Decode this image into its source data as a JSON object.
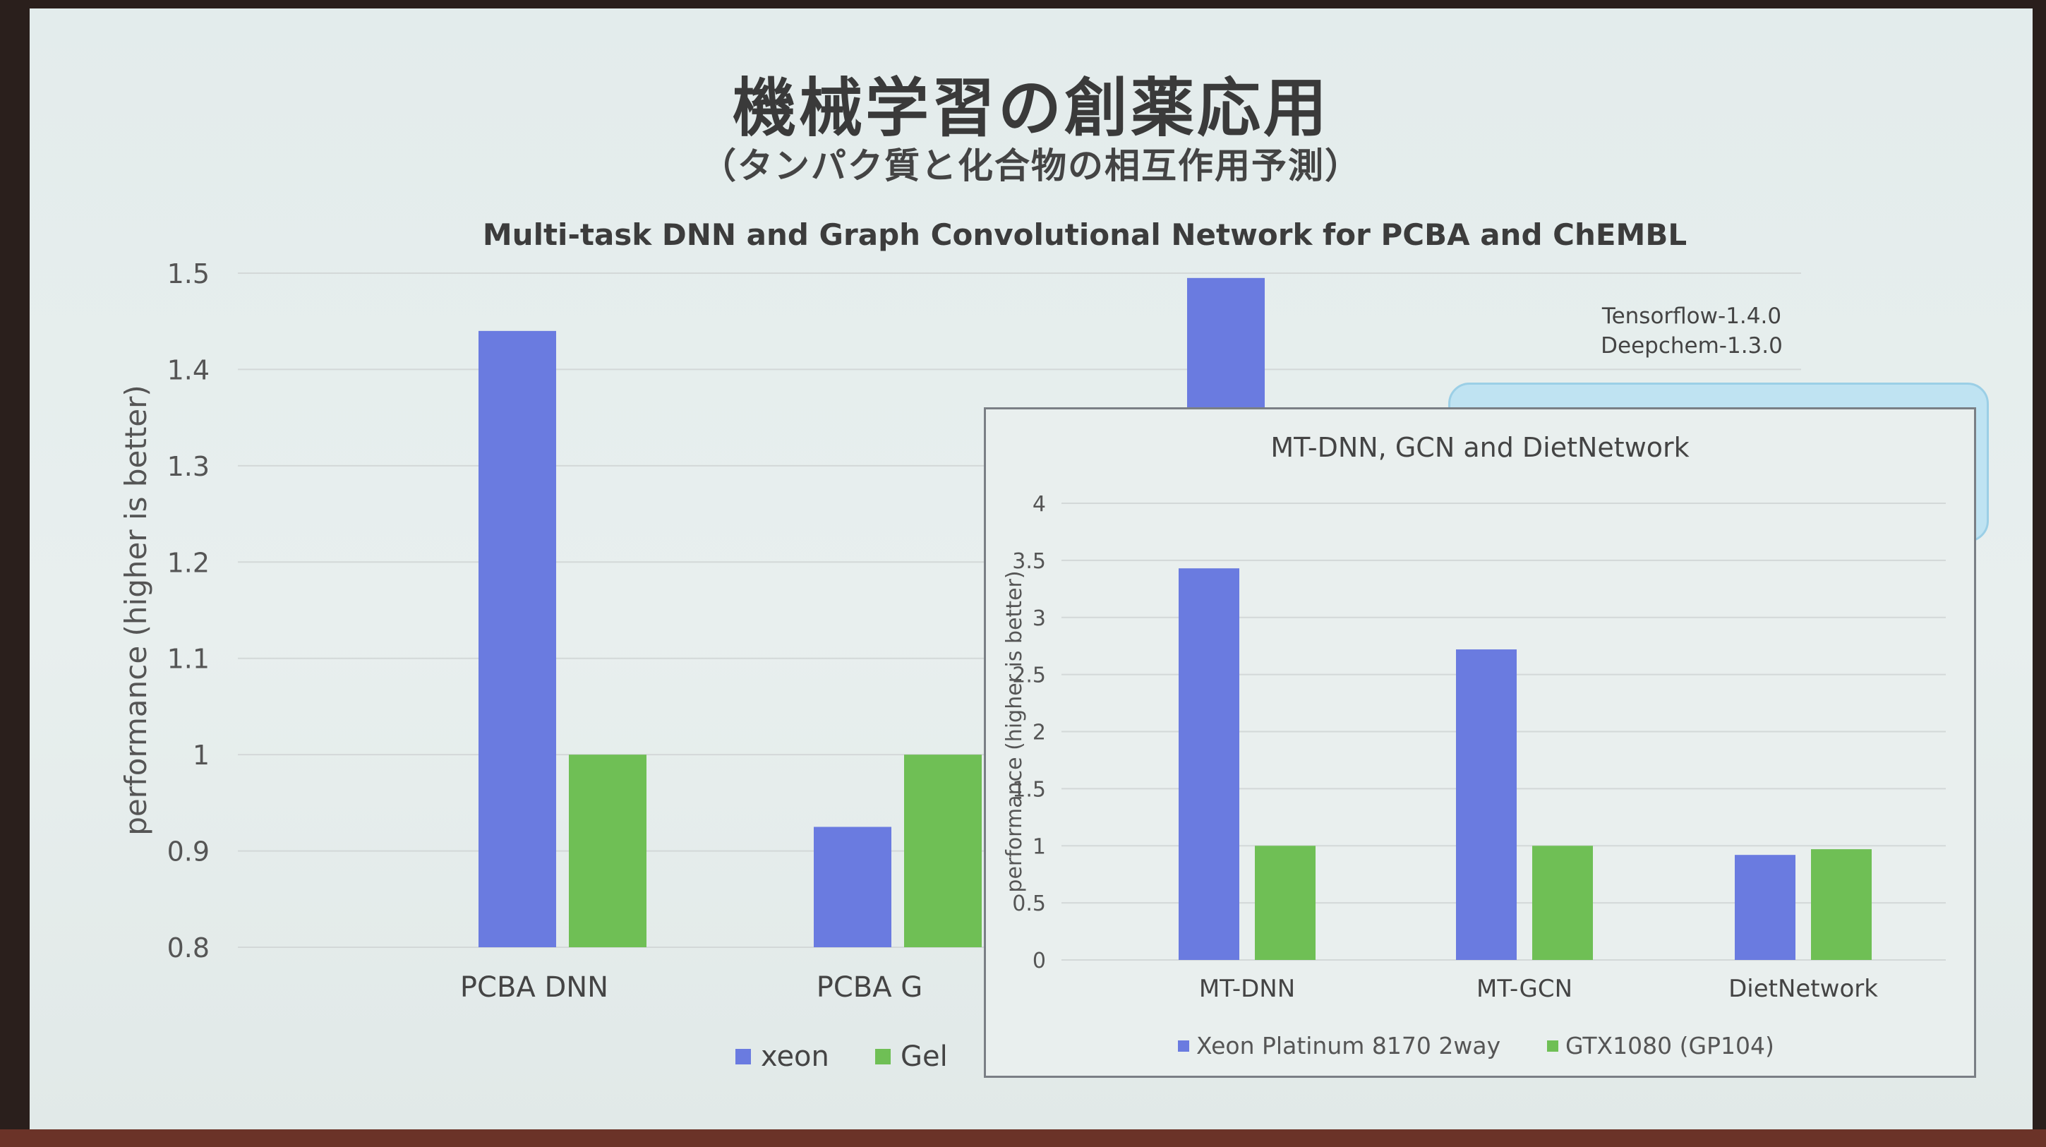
{
  "slide": {
    "title": "機械学習の創薬応用",
    "subtitle": "（タンパク質と化合物の相互作用予測）",
    "versions": [
      "Tensorflow-1.4.0",
      "Deepchem-1.3.0"
    ]
  },
  "colors": {
    "xeon": "#6a7be0",
    "gpu": "#6fbf55",
    "grid": "#d3d8d8"
  },
  "chart_data": [
    {
      "type": "bar",
      "title": "Multi-task DNN and Graph Convolutional Network for PCBA and ChEMBL",
      "xlabel": "",
      "ylabel": "performance (higher is better)",
      "categories": [
        "PCBA DNN",
        "PCBA G"
      ],
      "series": [
        {
          "name": "xeon",
          "values": [
            1.44,
            0.925
          ]
        },
        {
          "name": "Gel",
          "values": [
            1.0,
            1.0
          ]
        }
      ],
      "extra_bar_xeon": 1.495,
      "ylim": [
        0.8,
        1.5
      ],
      "yticks": [
        "0.8",
        "0.9",
        "1",
        "1.1",
        "1.2",
        "1.3",
        "1.4",
        "1.5"
      ],
      "ytick_values": [
        0.8,
        0.9,
        1.0,
        1.1,
        1.2,
        1.3,
        1.4,
        1.5
      ],
      "grid": true,
      "legend": "bottom"
    },
    {
      "type": "bar",
      "title": "MT-DNN, GCN and DietNetwork",
      "xlabel": "",
      "ylabel": "performance (higher is better)",
      "categories": [
        "MT-DNN",
        "MT-GCN",
        "DietNetwork"
      ],
      "series": [
        {
          "name": "Xeon Platinum 8170 2way",
          "values": [
            3.43,
            2.72,
            0.92
          ]
        },
        {
          "name": "GTX1080 (GP104)",
          "values": [
            1.0,
            1.0,
            0.97
          ]
        }
      ],
      "ylim": [
        0,
        4
      ],
      "yticks": [
        "0",
        "0.5",
        "1",
        "1.5",
        "2",
        "2.5",
        "3",
        "3.5",
        "4"
      ],
      "ytick_values": [
        0,
        0.5,
        1,
        1.5,
        2,
        2.5,
        3,
        3.5,
        4
      ],
      "grid": true,
      "legend": "bottom"
    }
  ]
}
